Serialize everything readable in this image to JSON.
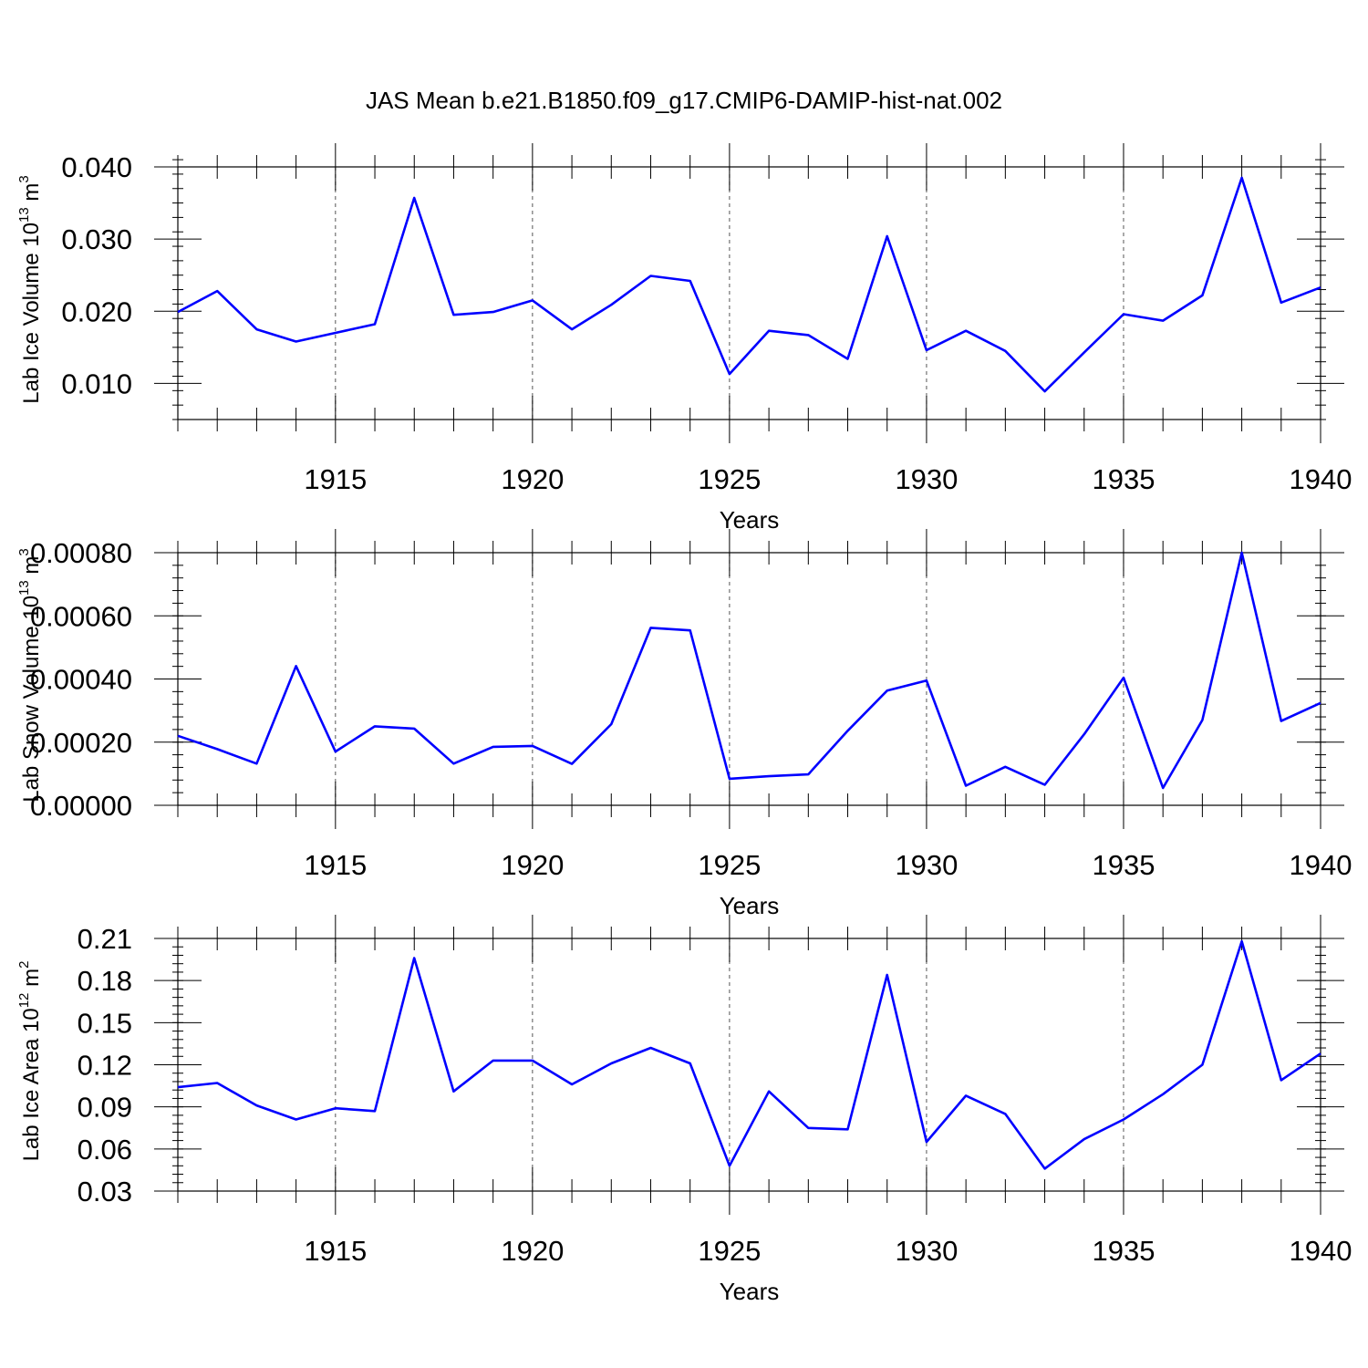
{
  "figure_title": "JAS Mean b.e21.B1850.f09_g17.CMIP6-DAMIP-hist-nat.002",
  "colors": {
    "line": "#0000ff",
    "axes": "#000000",
    "grid": "#555555"
  },
  "chart_data": [
    {
      "type": "line",
      "ylabel": {
        "main": "Lab Ice Volume 10",
        "sup": "13",
        "unit": " m",
        "unit_sup": "3"
      },
      "xlabel": "Years",
      "xlim": [
        1911,
        1940
      ],
      "ylim": [
        0.005,
        0.04
      ],
      "x_ticks": [
        1915,
        1920,
        1925,
        1930,
        1935,
        1940
      ],
      "x_tick_labels": [
        "1915",
        "1920",
        "1925",
        "1930",
        "1935",
        "1940"
      ],
      "y_ticks": [
        0.01,
        0.02,
        0.03,
        0.04
      ],
      "y_tick_labels": [
        "0.010",
        "0.020",
        "0.030",
        "0.040"
      ],
      "y_minor_step": 0.002,
      "grid": "vertical dashed at major x ticks",
      "x": [
        1911,
        1912,
        1913,
        1914,
        1915,
        1916,
        1917,
        1918,
        1919,
        1920,
        1921,
        1922,
        1923,
        1924,
        1925,
        1926,
        1927,
        1928,
        1929,
        1930,
        1931,
        1932,
        1933,
        1934,
        1935,
        1936,
        1937,
        1938,
        1939,
        1940
      ],
      "values": [
        0.0199,
        0.0228,
        0.0175,
        0.0158,
        0.017,
        0.0182,
        0.0357,
        0.0195,
        0.0199,
        0.0215,
        0.0175,
        0.0209,
        0.0249,
        0.0242,
        0.0113,
        0.0173,
        0.0167,
        0.0134,
        0.0304,
        0.0146,
        0.0173,
        0.0145,
        0.0089,
        0.0143,
        0.0196,
        0.0187,
        0.0222,
        0.0385,
        0.0212,
        0.0233
      ]
    },
    {
      "type": "line",
      "ylabel": {
        "main": "Lab Snow Volume 10",
        "sup": "13",
        "unit": " m",
        "unit_sup": "3"
      },
      "xlabel": "Years",
      "xlim": [
        1911,
        1940
      ],
      "ylim": [
        0.0,
        0.0008
      ],
      "x_ticks": [
        1915,
        1920,
        1925,
        1930,
        1935,
        1940
      ],
      "x_tick_labels": [
        "1915",
        "1920",
        "1925",
        "1930",
        "1935",
        "1940"
      ],
      "y_ticks": [
        0.0,
        0.0002,
        0.0004,
        0.0006,
        0.0008
      ],
      "y_tick_labels": [
        "0.00000",
        "0.00020",
        "0.00040",
        "0.00060",
        "0.00080"
      ],
      "y_minor_step": 4e-05,
      "grid": "vertical dashed at major x ticks",
      "x": [
        1911,
        1912,
        1913,
        1914,
        1915,
        1916,
        1917,
        1918,
        1919,
        1920,
        1921,
        1922,
        1923,
        1924,
        1925,
        1926,
        1927,
        1928,
        1929,
        1930,
        1931,
        1932,
        1933,
        1934,
        1935,
        1936,
        1937,
        1938,
        1939,
        1940
      ],
      "values": [
        0.00022,
        0.000178,
        0.000132,
        0.000441,
        0.00017,
        0.00025,
        0.000243,
        0.000132,
        0.000185,
        0.000188,
        0.000131,
        0.000257,
        0.000562,
        0.000554,
        8.4e-05,
        9.2e-05,
        9.8e-05,
        0.000236,
        0.000363,
        0.000395,
        6.2e-05,
        0.000122,
        6.5e-05,
        0.000225,
        0.000404,
        5.5e-05,
        0.00027,
        0.0008,
        0.000267,
        0.000324
      ]
    },
    {
      "type": "line",
      "ylabel": {
        "main": "Lab Ice Area 10",
        "sup": "12",
        "unit": " m",
        "unit_sup": "2"
      },
      "xlabel": "Years",
      "xlim": [
        1911,
        1940
      ],
      "ylim": [
        0.03,
        0.21
      ],
      "x_ticks": [
        1915,
        1920,
        1925,
        1930,
        1935,
        1940
      ],
      "x_tick_labels": [
        "1915",
        "1920",
        "1925",
        "1930",
        "1935",
        "1940"
      ],
      "y_ticks": [
        0.03,
        0.06,
        0.09,
        0.12,
        0.15,
        0.18,
        0.21
      ],
      "y_tick_labels": [
        "0.03",
        "0.06",
        "0.09",
        "0.12",
        "0.15",
        "0.18",
        "0.21"
      ],
      "y_minor_step": 0.006,
      "grid": "vertical dashed at major x ticks",
      "x": [
        1911,
        1912,
        1913,
        1914,
        1915,
        1916,
        1917,
        1918,
        1919,
        1920,
        1921,
        1922,
        1923,
        1924,
        1925,
        1926,
        1927,
        1928,
        1929,
        1930,
        1931,
        1932,
        1933,
        1934,
        1935,
        1936,
        1937,
        1938,
        1939,
        1940
      ],
      "values": [
        0.104,
        0.107,
        0.091,
        0.081,
        0.089,
        0.087,
        0.196,
        0.101,
        0.123,
        0.123,
        0.106,
        0.121,
        0.132,
        0.121,
        0.048,
        0.101,
        0.075,
        0.074,
        0.184,
        0.065,
        0.098,
        0.085,
        0.046,
        0.067,
        0.081,
        0.099,
        0.12,
        0.208,
        0.109,
        0.128
      ]
    }
  ]
}
